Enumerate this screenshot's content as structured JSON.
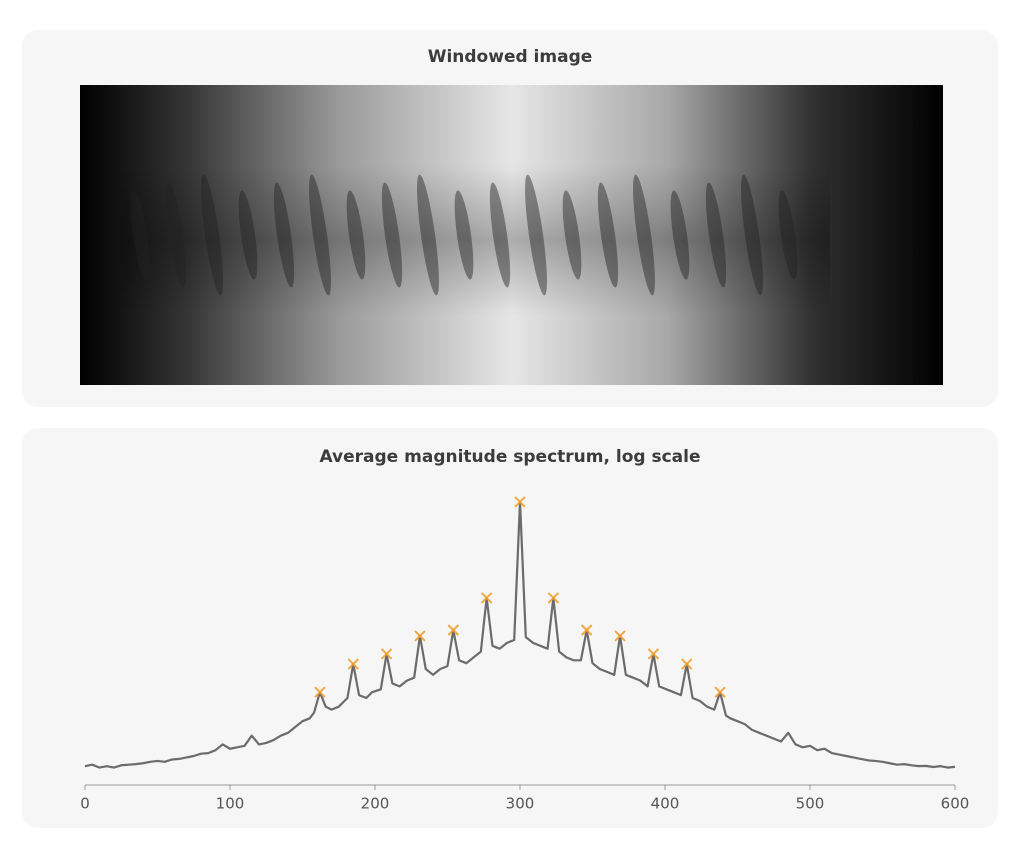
{
  "image_panel": {
    "title": "Windowed image"
  },
  "chart_data": {
    "type": "line",
    "title": "Average magnitude spectrum, log scale",
    "xlim": [
      0,
      600
    ],
    "xticks": [
      0,
      100,
      200,
      300,
      400,
      500,
      600
    ],
    "ylim": [
      0,
      100
    ],
    "series": [
      {
        "color": "#6b6b6b",
        "x": [
          0,
          5,
          10,
          15,
          20,
          25,
          30,
          35,
          40,
          45,
          50,
          55,
          60,
          65,
          70,
          75,
          80,
          85,
          90,
          95,
          100,
          105,
          110,
          115,
          120,
          125,
          130,
          135,
          140,
          145,
          150,
          155,
          158,
          162,
          166,
          170,
          175,
          181,
          185,
          189,
          194,
          198,
          204,
          208,
          212,
          217,
          222,
          227,
          231,
          235,
          240,
          245,
          250,
          254,
          258,
          263,
          268,
          273,
          277,
          281,
          286,
          291,
          296,
          300,
          304,
          309,
          314,
          319,
          323,
          327,
          332,
          337,
          342,
          346,
          350,
          355,
          360,
          365,
          369,
          373,
          378,
          383,
          388,
          392,
          396,
          401,
          406,
          411,
          415,
          419,
          424,
          429,
          434,
          438,
          442,
          445,
          450,
          455,
          460,
          465,
          470,
          475,
          480,
          485,
          490,
          495,
          500,
          505,
          510,
          515,
          520,
          525,
          530,
          535,
          540,
          545,
          550,
          555,
          560,
          565,
          570,
          575,
          580,
          585,
          590,
          595,
          600
        ],
        "values": [
          6.5,
          7,
          6,
          6.5,
          6,
          6.8,
          7,
          7.2,
          7.5,
          8,
          8.3,
          8,
          8.8,
          9,
          9.5,
          10,
          10.8,
          11,
          12,
          14,
          12.5,
          13,
          13.5,
          17,
          14,
          14.5,
          15.5,
          17,
          18,
          20,
          22,
          23,
          25,
          32,
          27,
          26,
          27,
          30,
          41.7,
          31,
          30,
          32,
          33,
          45.2,
          35,
          34,
          36,
          37,
          51.4,
          40,
          38,
          40,
          41,
          53.4,
          43,
          42,
          44,
          46,
          64.5,
          48,
          47,
          49,
          50,
          97.6,
          51,
          49,
          48,
          47,
          64.5,
          46,
          44,
          43,
          43,
          53.4,
          42,
          40,
          39,
          38,
          51.4,
          38,
          37,
          36,
          34,
          45.2,
          34,
          33,
          32,
          31,
          41.7,
          30,
          29,
          27,
          26,
          32,
          24,
          23,
          22,
          21,
          19,
          18,
          17,
          16,
          15,
          18,
          14,
          13,
          13.5,
          12,
          12.5,
          11,
          10.5,
          10,
          9.5,
          9,
          8.5,
          8.3,
          8,
          7.5,
          7,
          7.2,
          6.8,
          6.5,
          6.6,
          6.2,
          6.5,
          6,
          6.3
        ]
      },
      {
        "type": "scatter",
        "color": "#f0a030",
        "x": [
          162,
          185,
          208,
          231,
          254,
          277,
          300,
          323,
          346,
          369,
          392,
          415,
          438
        ],
        "values": [
          32,
          41.7,
          45.2,
          51.4,
          53.4,
          64.5,
          97.6,
          64.5,
          53.4,
          51.4,
          45.2,
          41.7,
          32
        ]
      }
    ]
  }
}
